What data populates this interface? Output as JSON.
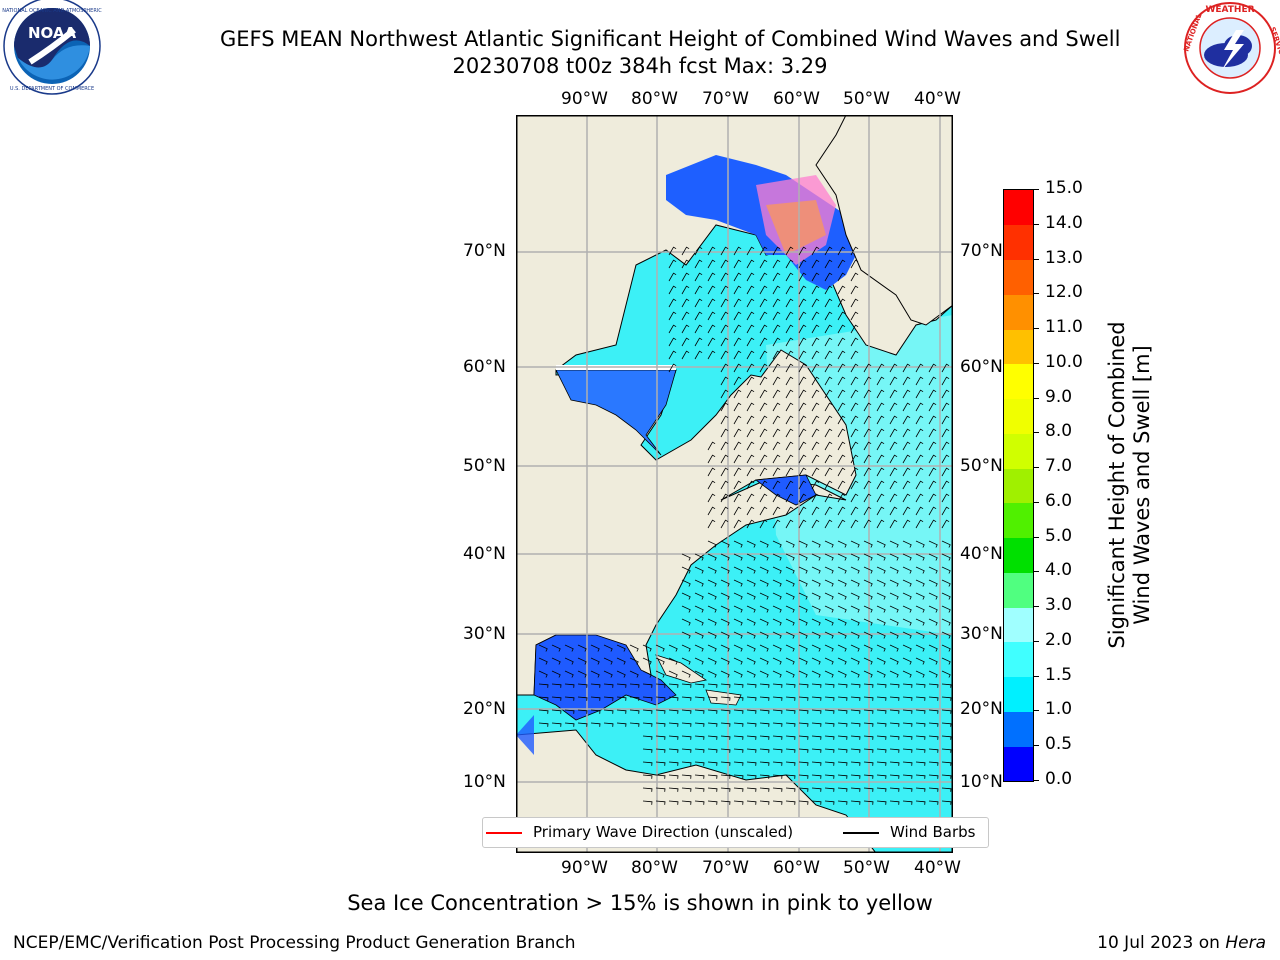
{
  "header": {
    "title_line1": "GEFS MEAN Northwest Atlantic Significant Height of Combined Wind Waves and Swell",
    "title_line2": "20230708 t00z 384h fcst   Max: 3.29"
  },
  "logos": {
    "left": {
      "name": "NOAA",
      "ring_text": "NATIONAL OCEANIC AND ATMOSPHERIC ADMINISTRATION · U.S. DEPARTMENT OF COMMERCE"
    },
    "right": {
      "name": "National Weather Service",
      "ring_text": "NATIONAL WEATHER SERVICE"
    }
  },
  "map": {
    "lon_ticks": [
      "90°W",
      "80°W",
      "70°W",
      "60°W",
      "50°W",
      "40°W"
    ],
    "lat_ticks": [
      "70°N",
      "60°N",
      "50°N",
      "40°N",
      "30°N",
      "20°N",
      "10°N"
    ],
    "ocean_color": "#00ffff",
    "land_color": "#efecdc",
    "wave_arrow_color": "#ff0000",
    "wind_barb_color": "#000000"
  },
  "legend": {
    "primary_wave": "Primary Wave Direction (unscaled)",
    "wind_barbs": "Wind Barbs"
  },
  "colorbar": {
    "label_line1": "Significant Height of Combined",
    "label_line2": "Wind Waves and Swell [m]",
    "ticks": [
      "0.0",
      "0.5",
      "1.0",
      "1.5",
      "2.0",
      "3.0",
      "4.0",
      "5.0",
      "6.0",
      "7.0",
      "8.0",
      "9.0",
      "10.0",
      "11.0",
      "12.0",
      "13.0",
      "14.0",
      "15.0"
    ],
    "colors": [
      "#0000ff",
      "#0070ff",
      "#00f0ff",
      "#40ffff",
      "#a0ffff",
      "#50ff80",
      "#00e000",
      "#50f000",
      "#a0f000",
      "#d0ff00",
      "#f0ff00",
      "#ffff00",
      "#ffc000",
      "#ff9000",
      "#ff6000",
      "#ff3000",
      "#ff0000"
    ]
  },
  "footer": {
    "note": "Sea Ice Concentration > 15% is shown in pink to yellow",
    "branch": "NCEP/EMC/Verification Post Processing Product Generation Branch",
    "date": "10 Jul 2023 on ",
    "host": "Hera"
  }
}
